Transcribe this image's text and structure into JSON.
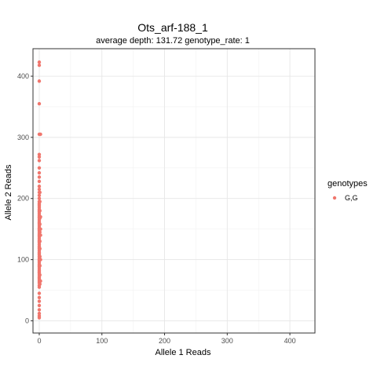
{
  "chart_data": {
    "type": "scatter",
    "title": "Ots_arf-188_1",
    "subtitle": "average depth:  131.72  genotype_rate:  1",
    "xlabel": "Allele 1 Reads",
    "ylabel": "Allele 2 Reads",
    "xlim": [
      -10,
      440
    ],
    "ylim": [
      -20,
      445
    ],
    "x_ticks": [
      0,
      100,
      200,
      300,
      400
    ],
    "y_ticks": [
      0,
      100,
      200,
      300,
      400
    ],
    "x_tick_labels": [
      "0",
      "100",
      "200",
      "300",
      "400"
    ],
    "y_tick_labels": [
      "0",
      "100",
      "200",
      "300",
      "400"
    ],
    "grid": true,
    "legend": {
      "title": "genotypes",
      "placement": "right",
      "entries": [
        {
          "label": "G,G",
          "color": "#f0766d"
        }
      ]
    },
    "series": [
      {
        "name": "G,G",
        "color": "#f0766d",
        "points": [
          [
            0,
            5
          ],
          [
            0,
            8
          ],
          [
            0,
            12
          ],
          [
            0,
            18
          ],
          [
            0,
            25
          ],
          [
            0,
            32
          ],
          [
            0,
            38
          ],
          [
            0,
            45
          ],
          [
            0,
            55
          ],
          [
            0,
            58
          ],
          [
            0,
            62
          ],
          [
            0,
            65
          ],
          [
            0,
            68
          ],
          [
            0,
            70
          ],
          [
            0,
            72
          ],
          [
            0,
            75
          ],
          [
            0,
            78
          ],
          [
            0,
            80
          ],
          [
            0,
            82
          ],
          [
            0,
            85
          ],
          [
            0,
            88
          ],
          [
            0,
            90
          ],
          [
            0,
            92
          ],
          [
            0,
            95
          ],
          [
            0,
            98
          ],
          [
            0,
            100
          ],
          [
            0,
            102
          ],
          [
            0,
            105
          ],
          [
            0,
            108
          ],
          [
            0,
            110
          ],
          [
            0,
            112
          ],
          [
            0,
            115
          ],
          [
            0,
            118
          ],
          [
            0,
            120
          ],
          [
            0,
            122
          ],
          [
            0,
            125
          ],
          [
            0,
            128
          ],
          [
            0,
            130
          ],
          [
            0,
            132
          ],
          [
            0,
            135
          ],
          [
            0,
            138
          ],
          [
            0,
            140
          ],
          [
            0,
            142
          ],
          [
            0,
            145
          ],
          [
            0,
            148
          ],
          [
            0,
            150
          ],
          [
            0,
            152
          ],
          [
            0,
            155
          ],
          [
            0,
            158
          ],
          [
            0,
            160
          ],
          [
            0,
            162
          ],
          [
            0,
            165
          ],
          [
            0,
            168
          ],
          [
            0,
            170
          ],
          [
            0,
            172
          ],
          [
            0,
            175
          ],
          [
            0,
            178
          ],
          [
            0,
            180
          ],
          [
            0,
            182
          ],
          [
            0,
            185
          ],
          [
            0,
            188
          ],
          [
            0,
            190
          ],
          [
            0,
            192
          ],
          [
            0,
            195
          ],
          [
            0,
            200
          ],
          [
            0,
            205
          ],
          [
            0,
            210
          ],
          [
            0,
            215
          ],
          [
            0,
            220
          ],
          [
            0,
            228
          ],
          [
            0,
            235
          ],
          [
            0,
            242
          ],
          [
            0,
            250
          ],
          [
            0,
            262
          ],
          [
            0,
            268
          ],
          [
            0,
            272
          ],
          [
            0,
            305
          ],
          [
            0,
            355
          ],
          [
            0,
            392
          ],
          [
            0,
            418
          ],
          [
            0,
            423
          ],
          [
            1,
            60
          ],
          [
            1,
            75
          ],
          [
            1,
            90
          ],
          [
            1,
            105
          ],
          [
            1,
            118
          ],
          [
            1,
            130
          ],
          [
            1,
            145
          ],
          [
            1,
            158
          ],
          [
            1,
            168
          ],
          [
            1,
            180
          ],
          [
            1,
            195
          ],
          [
            1,
            210
          ],
          [
            2,
            65
          ],
          [
            2,
            100
          ],
          [
            2,
            140
          ],
          [
            2,
            150
          ],
          [
            2,
            170
          ],
          [
            2,
            305
          ]
        ]
      }
    ]
  }
}
